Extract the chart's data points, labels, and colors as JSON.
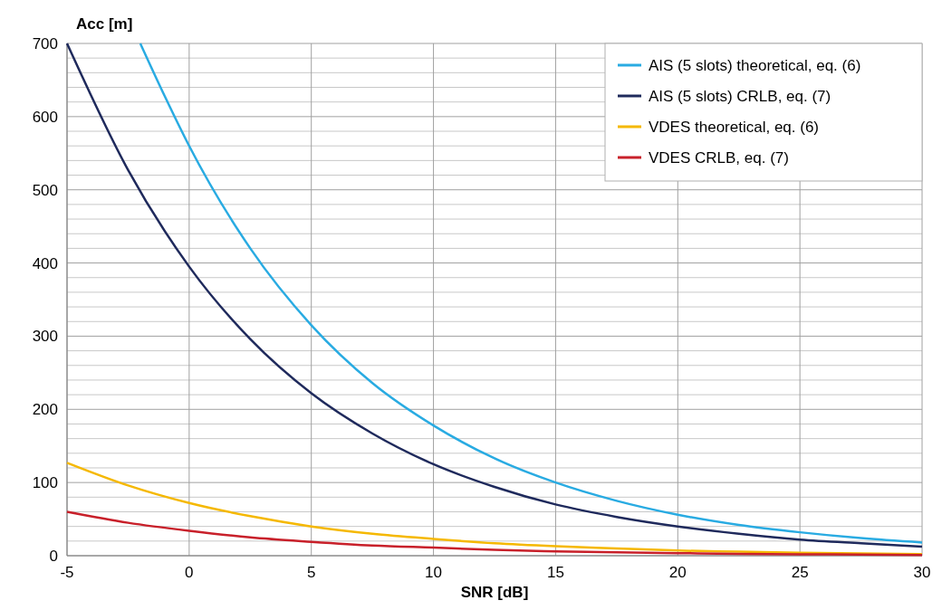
{
  "chart_data": {
    "type": "line",
    "xlabel": "SNR [dB]",
    "ylabel": "Acc [m]",
    "xlim": [
      -5,
      30
    ],
    "xticks": [
      -5,
      0,
      5,
      10,
      15,
      20,
      25,
      30
    ],
    "ylim": [
      0,
      700
    ],
    "yticks": [
      0,
      {
        "value": 20,
        "label": null
      },
      {
        "value": 40,
        "label": null
      },
      {
        "value": 60,
        "label": null
      },
      {
        "value": 80,
        "label": null
      },
      100,
      {
        "value": 120,
        "label": null
      },
      {
        "value": 140,
        "label": null
      },
      {
        "value": 160,
        "label": null
      },
      {
        "value": 180,
        "label": null
      },
      200,
      {
        "value": 220,
        "label": null
      },
      {
        "value": 240,
        "label": null
      },
      {
        "value": 260,
        "label": null
      },
      {
        "value": 280,
        "label": null
      },
      300,
      {
        "value": 320,
        "label": null
      },
      {
        "value": 340,
        "label": null
      },
      {
        "value": 360,
        "label": null
      },
      {
        "value": 380,
        "label": null
      },
      400,
      {
        "value": 420,
        "label": null
      },
      {
        "value": 440,
        "label": null
      },
      {
        "value": 460,
        "label": null
      },
      {
        "value": 480,
        "label": null
      },
      500,
      {
        "value": 520,
        "label": null
      },
      {
        "value": 540,
        "label": null
      },
      {
        "value": 560,
        "label": null
      },
      {
        "value": 580,
        "label": null
      },
      600,
      {
        "value": 620,
        "label": null
      },
      {
        "value": 640,
        "label": null
      },
      {
        "value": 660,
        "label": null
      },
      {
        "value": 680,
        "label": null
      },
      700
    ],
    "grid": true,
    "legend": "top right",
    "line_style": "solid",
    "marker": "none",
    "series": [
      {
        "name": "AIS (5 slots) theoretical, eq. (6)",
        "color": "#29abe2",
        "x": [
          -2,
          -1,
          0,
          2.5,
          5,
          7.5,
          10,
          12.5,
          15,
          17.5,
          20,
          22.5,
          25,
          27.5,
          30
        ],
        "values": [
          700,
          628,
          560,
          420,
          315,
          236,
          178,
          133,
          100,
          75,
          56,
          42,
          32,
          24,
          18
        ]
      },
      {
        "name": "AIS (5 slots) CRLB, eq. (7)",
        "color": "#1f2a5c",
        "x": [
          -5,
          -2.5,
          0,
          2.5,
          5,
          7.5,
          10,
          12.5,
          15,
          17.5,
          20,
          22.5,
          25,
          27.5,
          30
        ],
        "values": [
          700,
          527,
          395,
          296,
          222,
          167,
          125,
          94,
          70,
          53,
          40,
          30,
          22,
          17,
          12.5
        ]
      },
      {
        "name": "VDES theoretical, eq. (6)",
        "color": "#f5b800",
        "x": [
          -5,
          -2.5,
          0,
          2.5,
          5,
          7.5,
          10,
          12.5,
          15,
          17.5,
          20,
          22.5,
          25,
          27.5,
          30
        ],
        "values": [
          127,
          96,
          72,
          54,
          40,
          30,
          23,
          17,
          13,
          10,
          7,
          5.5,
          4,
          3,
          2
        ]
      },
      {
        "name": "VDES CRLB, eq. (7)",
        "color": "#c8202a",
        "x": [
          -5,
          -2.5,
          0,
          2.5,
          5,
          7.5,
          10,
          12.5,
          15,
          17.5,
          20,
          22.5,
          25,
          27.5,
          30
        ],
        "values": [
          60,
          45,
          34,
          25,
          19,
          14,
          11,
          8,
          6,
          4.5,
          3.5,
          2.5,
          2,
          1.5,
          1
        ]
      }
    ]
  }
}
